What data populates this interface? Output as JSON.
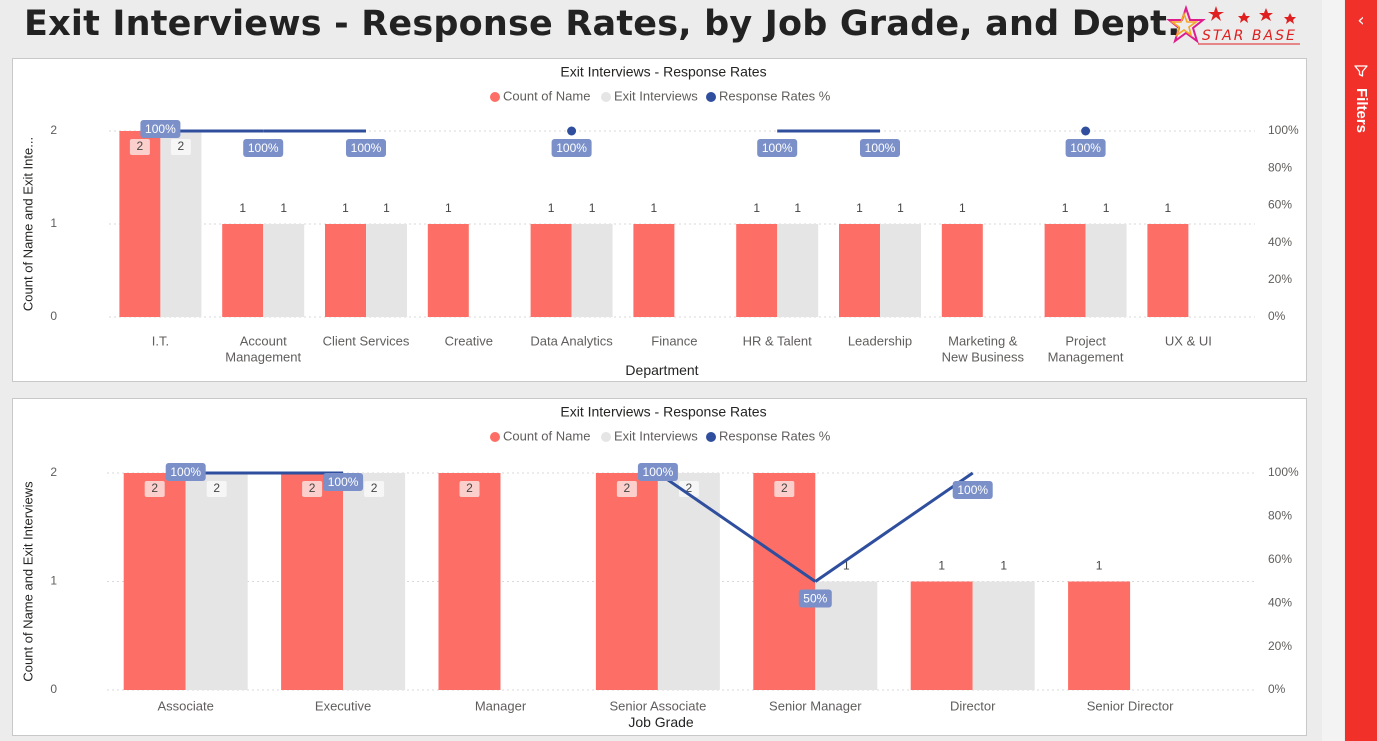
{
  "page": {
    "title": "Exit Interviews - Response Rates, by Job Grade, and Dept.",
    "logo_text": "STAR BASE",
    "filters_label": "Filters",
    "collapse_icon": "chevron-left-icon",
    "filter_icon": "funnel-icon"
  },
  "colors": {
    "count_of_name": "#fd6f66",
    "exit_interviews": "#e5e5e5",
    "response_rate": "#2f4f9e",
    "rate_label_bg": "#7b90c9",
    "filters_pane": "#f2302a"
  },
  "chart_data": [
    {
      "type": "bar",
      "title": "Exit Interviews - Response Rates",
      "xlabel": "Department",
      "ylabel": "Count of Name and Exit Inte...",
      "legend": [
        "Count of Name",
        "Exit Interviews",
        "Response Rates %"
      ],
      "legend_position": "top-center",
      "ylim": [
        0,
        2
      ],
      "y_ticks": [
        "0",
        "1",
        "2"
      ],
      "y2lim": [
        0,
        100
      ],
      "y2_ticks": [
        "0%",
        "20%",
        "40%",
        "60%",
        "80%",
        "100%"
      ],
      "categories": [
        [
          "I.T."
        ],
        [
          "Account",
          "Management"
        ],
        [
          "Client Services"
        ],
        [
          "Creative"
        ],
        [
          "Data Analytics"
        ],
        [
          "Finance"
        ],
        [
          "HR & Talent"
        ],
        [
          "Leadership"
        ],
        [
          "Marketing &",
          "New Business"
        ],
        [
          "Project",
          "Management"
        ],
        [
          "UX & UI"
        ]
      ],
      "series": [
        {
          "name": "Count of Name",
          "values": [
            2,
            1,
            1,
            1,
            1,
            1,
            1,
            1,
            1,
            1,
            1
          ]
        },
        {
          "name": "Exit Interviews",
          "values": [
            2,
            1,
            1,
            null,
            1,
            null,
            1,
            1,
            null,
            1,
            null
          ]
        },
        {
          "name": "Response Rates %",
          "values": [
            100,
            100,
            100,
            null,
            100,
            null,
            100,
            100,
            null,
            100,
            null
          ]
        }
      ],
      "rate_labels": [
        "100%",
        "100%",
        "100%",
        null,
        "100%",
        null,
        "100%",
        "100%",
        null,
        "100%",
        null
      ],
      "grid": true
    },
    {
      "type": "bar",
      "title": "Exit Interviews - Response Rates",
      "xlabel": "Job Grade",
      "ylabel": "Count of Name and Exit Interviews",
      "legend": [
        "Count of Name",
        "Exit Interviews",
        "Response Rates %"
      ],
      "legend_position": "top-center",
      "ylim": [
        0,
        2
      ],
      "y_ticks": [
        "0",
        "1",
        "2"
      ],
      "y2lim": [
        0,
        100
      ],
      "y2_ticks": [
        "0%",
        "20%",
        "40%",
        "60%",
        "80%",
        "100%"
      ],
      "categories": [
        [
          "Associate"
        ],
        [
          "Executive"
        ],
        [
          "Manager"
        ],
        [
          "Senior Associate"
        ],
        [
          "Senior Manager"
        ],
        [
          "Director"
        ],
        [
          "Senior Director"
        ]
      ],
      "series": [
        {
          "name": "Count of Name",
          "values": [
            2,
            2,
            2,
            2,
            2,
            1,
            1
          ]
        },
        {
          "name": "Exit Interviews",
          "values": [
            2,
            2,
            null,
            2,
            1,
            1,
            null
          ]
        },
        {
          "name": "Response Rates %",
          "values": [
            100,
            100,
            null,
            100,
            50,
            100,
            null
          ]
        }
      ],
      "rate_labels": [
        "100%",
        "100%",
        null,
        "100%",
        "50%",
        "100%",
        null
      ],
      "grid": true
    }
  ]
}
